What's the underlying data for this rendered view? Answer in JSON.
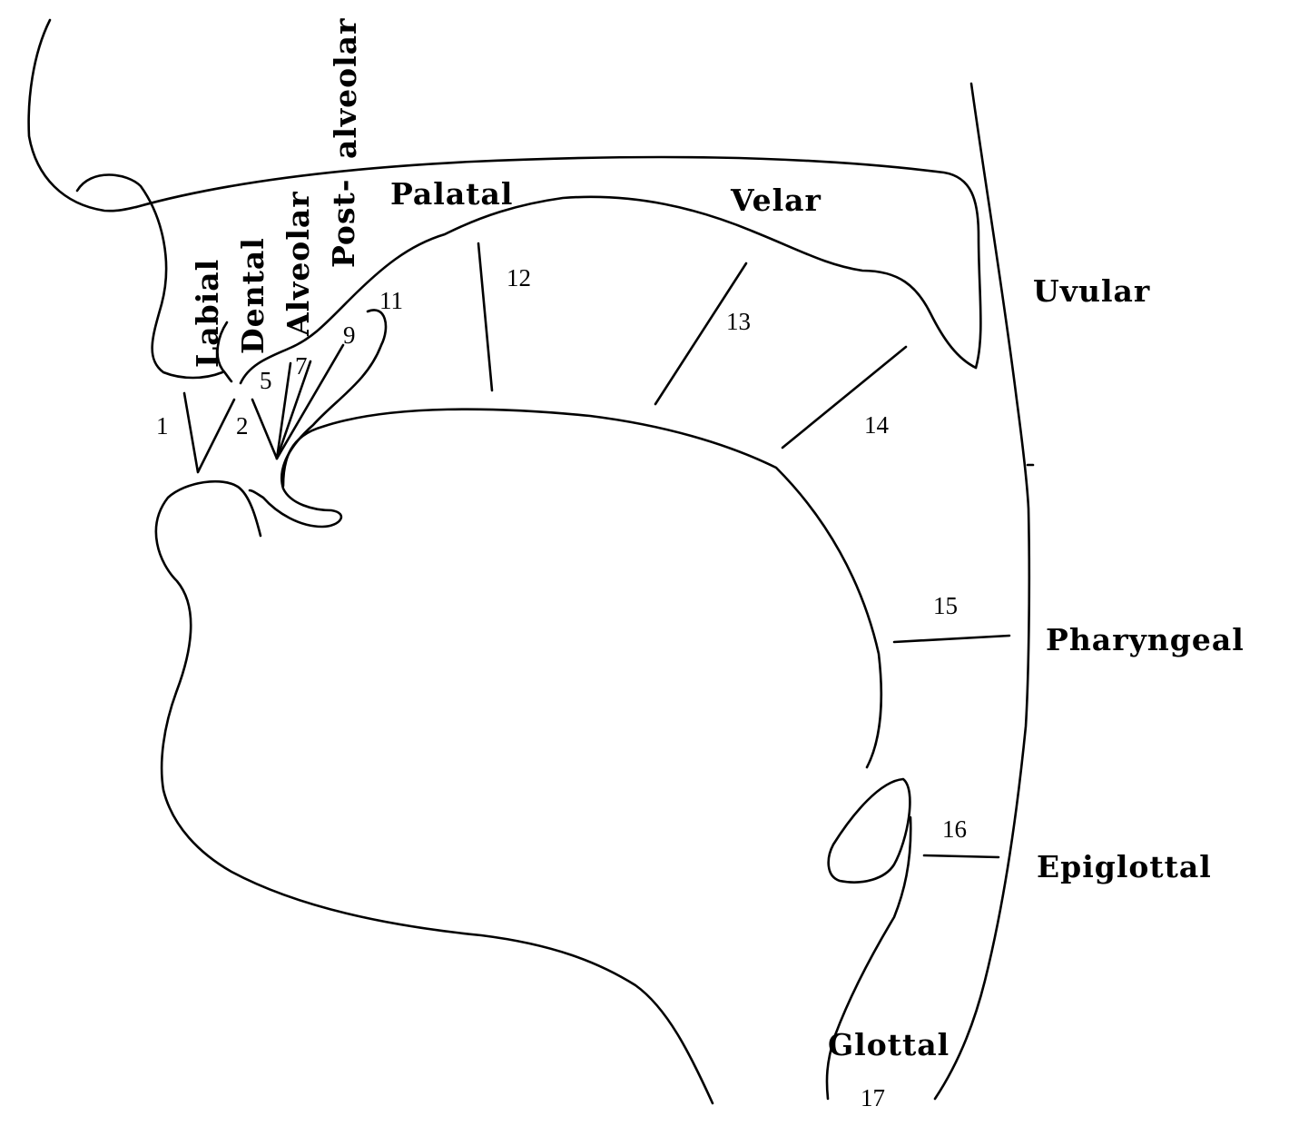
{
  "regions": {
    "labial": "Labial",
    "dental": "Dental",
    "alveolar": "Alveolar",
    "post": "Post-",
    "alveolar2": "alveolar",
    "palatal": "Palatal",
    "velar": "Velar",
    "uvular": "Uvular",
    "pharyngeal": "Pharyngeal",
    "epiglottal": "Epiglottal",
    "glottal": "Glottal"
  },
  "numbers": {
    "n1": "1",
    "n2": "2",
    "n5": "5",
    "n7": "7",
    "n9": "9",
    "n11": "11",
    "n12": "12",
    "n13": "13",
    "n14": "14",
    "n15": "15",
    "n16": "16",
    "n17": "17"
  }
}
